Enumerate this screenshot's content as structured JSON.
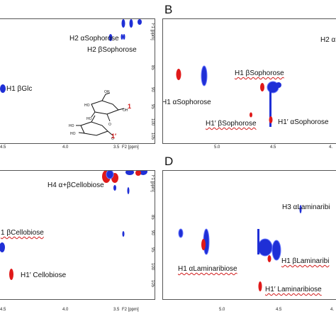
{
  "panels": {
    "A": {
      "letter": "",
      "labels": {
        "h2_alpha": "H2 αSophorose",
        "h2_beta": "H2 βSophorose",
        "h1_bglc": "H1 βGlc"
      },
      "x_ticks": [
        "4.5",
        "4.0",
        "3.5",
        "F2 [ppm]"
      ],
      "f1_ticks": [
        "F1 [ppm]",
        "80",
        "85",
        "90",
        "95",
        "100",
        "105"
      ],
      "structure_labels": {
        "one": "1",
        "one_prime": "1′"
      }
    },
    "B": {
      "letter": "B",
      "labels": {
        "h2_alpha_partial": "H2 α",
        "h1_bsoph": "H1 βSophorose",
        "h1_asoph": "H1 αSophorose",
        "h1p_bsoph": "H1′ βSophorose",
        "h1p_asoph": "H1′ αSophorose"
      },
      "x_ticks": [
        "5.0",
        "4.5",
        "4."
      ]
    },
    "C": {
      "letter": "",
      "labels": {
        "h4": "H4 α+βCellobiose",
        "h1_bcell": "1 βCellobiose",
        "h1p_cell": "H1′ Cellobiose"
      },
      "x_ticks": [
        "4.5",
        "4.0",
        "3.5",
        "F2 [ppm]"
      ],
      "f1_ticks": [
        "F1 [ppm]",
        "80",
        "85",
        "90",
        "95",
        "100",
        "105"
      ]
    },
    "D": {
      "letter": "D",
      "labels": {
        "h3_alam": "H3 αLaminaribi",
        "h1_alam": "H1 αLaminaribiose",
        "h1_blam": "H1 βLaminaribi",
        "h1p_lam": "H1′ Laminaribiose"
      },
      "x_ticks": [
        "5.0",
        "4.5",
        "4."
      ]
    }
  },
  "colors": {
    "blue": "#1f2fd6",
    "red": "#e01919",
    "squiggle": "#d21a1a"
  }
}
